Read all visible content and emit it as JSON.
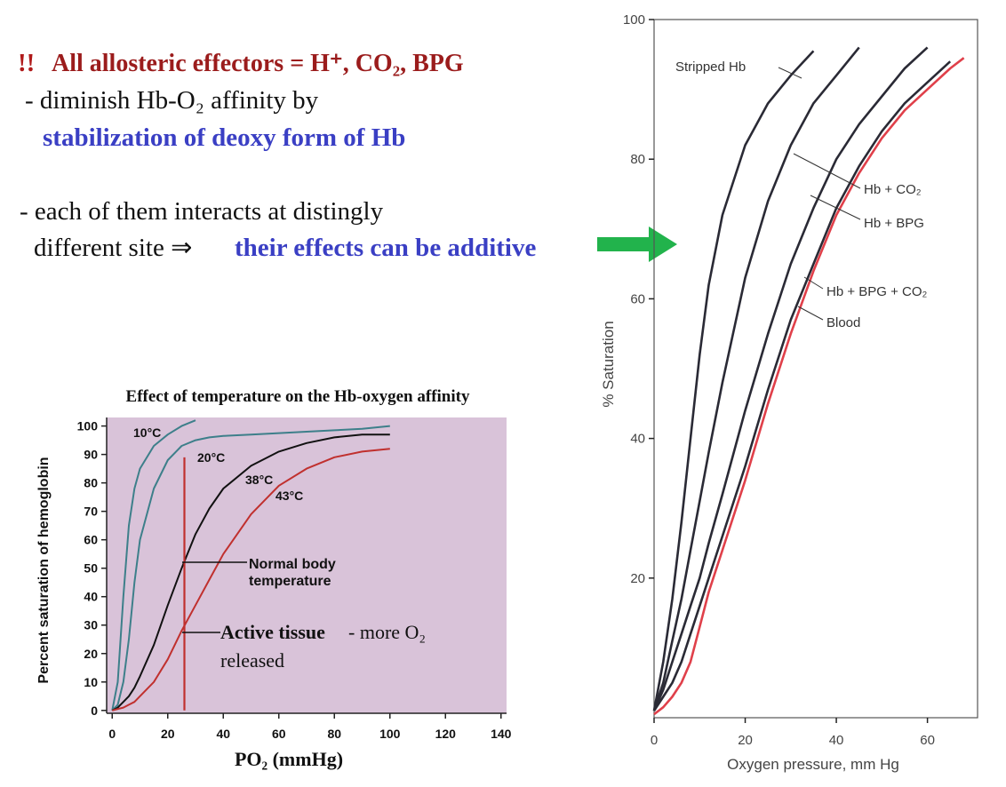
{
  "slide": {
    "heading_mark": "!!",
    "heading": "All allosteric effectors = H⁺, CO₂, BPG",
    "line1": "- diminish Hb-O₂ affinity by",
    "line2": "stabilization of deoxy form of Hb",
    "line3": "- each of them interacts at distingly",
    "line4a": "different site ⇒",
    "line4b": "their effects can be additive"
  },
  "chart_data": [
    {
      "type": "line",
      "title": "Effect of temperature on the Hb-oxygen affinity",
      "xlabel": "PO₂ (mmHg)",
      "ylabel": "Percent saturation of hemoglobin",
      "background": "#d9c3d9",
      "xlim": [
        -2,
        142
      ],
      "ylim": [
        -1,
        103
      ],
      "xticks": [
        0,
        20,
        40,
        60,
        80,
        100,
        120,
        140
      ],
      "yticks": [
        0,
        10,
        20,
        30,
        40,
        50,
        60,
        70,
        80,
        90,
        100
      ],
      "x": [
        0,
        2,
        4,
        6,
        8,
        10,
        15,
        20,
        25,
        30,
        35,
        40,
        50,
        60,
        70,
        80,
        90,
        100
      ],
      "series": [
        {
          "name": "10°C",
          "color": "#3d7f8a",
          "values": [
            0,
            10,
            40,
            65,
            78,
            85,
            93,
            97,
            100,
            102,
            null,
            null,
            null,
            null,
            null,
            null,
            null,
            null
          ]
        },
        {
          "name": "20°C",
          "color": "#3d7f8a",
          "values": [
            0,
            2,
            10,
            25,
            45,
            60,
            78,
            88,
            93,
            95,
            96,
            96.5,
            97,
            97.5,
            98,
            98.5,
            99,
            100
          ]
        },
        {
          "name": "38°C",
          "color": "#111111",
          "values": [
            0,
            1,
            3,
            5,
            8,
            12,
            23,
            37,
            50,
            62,
            71,
            78,
            86,
            91,
            94,
            96,
            97,
            97
          ]
        },
        {
          "name": "43°C",
          "color": "#c0302e",
          "values": [
            0,
            0.5,
            1,
            2,
            3,
            5,
            10,
            18,
            28,
            37,
            46,
            55,
            69,
            79,
            85,
            89,
            91,
            92
          ]
        }
      ],
      "reference_line": {
        "x": 26,
        "from": 0,
        "to": 89,
        "color": "#c0302e"
      },
      "annotations": [
        "Normal body",
        "temperature",
        "Active tissue",
        "- more O₂",
        "released"
      ]
    },
    {
      "type": "line",
      "xlabel": "Oxygen pressure, mm Hg",
      "ylabel": "% Saturation",
      "xlim": [
        0,
        71
      ],
      "ylim": [
        0,
        100
      ],
      "xticks": [
        0,
        20,
        40,
        60
      ],
      "yticks": [
        20,
        40,
        60,
        80,
        100
      ],
      "x": [
        0,
        2,
        4,
        6,
        8,
        10,
        12,
        15,
        20,
        25,
        30,
        35,
        40,
        45,
        50,
        55,
        60,
        65,
        68
      ],
      "series": [
        {
          "name": "Stripped Hb",
          "color": "#2a2a35",
          "values": [
            1,
            8,
            17,
            28,
            40,
            52,
            62,
            72,
            82,
            88,
            92,
            95.5,
            null,
            null,
            null,
            null,
            null,
            null,
            null
          ]
        },
        {
          "name": "Hb + CO₂",
          "color": "#2a2a35",
          "values": [
            1,
            5,
            11,
            17,
            24,
            31,
            38,
            48,
            63,
            74,
            82,
            88,
            92,
            96,
            null,
            null,
            null,
            null,
            null
          ]
        },
        {
          "name": "Hb + BPG",
          "color": "#2a2a35",
          "values": [
            1,
            4,
            8,
            12,
            16,
            20,
            25,
            32,
            44,
            55,
            65,
            73,
            80,
            85,
            89,
            93,
            96,
            null,
            null
          ]
        },
        {
          "name": "Hb + BPG + CO₂",
          "color": "#2a2a35",
          "values": [
            1,
            3,
            5,
            8,
            12,
            16,
            20,
            26,
            36,
            47,
            57,
            65,
            73,
            79,
            84,
            88,
            91,
            94,
            null
          ]
        },
        {
          "name": "Blood",
          "color": "#e0404a",
          "values": [
            0.5,
            1.5,
            3,
            5,
            8,
            13,
            18,
            24,
            34,
            45,
            55,
            64,
            72,
            78,
            83,
            87,
            90,
            93,
            94.5
          ]
        }
      ]
    }
  ]
}
